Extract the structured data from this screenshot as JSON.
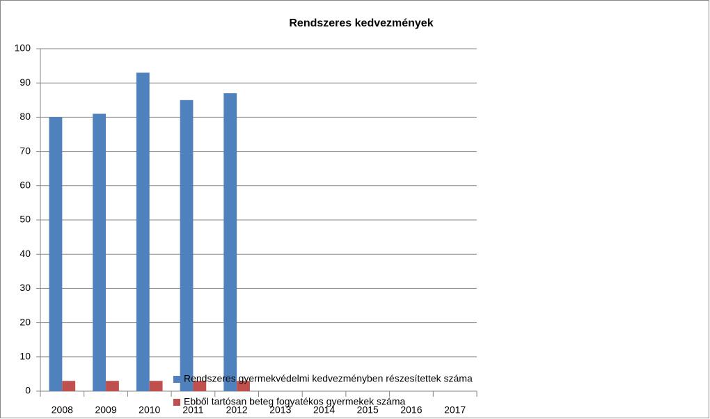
{
  "chart_data": {
    "type": "bar",
    "title": "Rendszeres kedvezmények",
    "categories": [
      "2008",
      "2009",
      "2010",
      "2011",
      "2012",
      "2013",
      "2014",
      "2015",
      "2016",
      "2017"
    ],
    "series": [
      {
        "name": "Rendszeres gyermekvédelmi kedvezményben részesítettek száma",
        "color": "#4f81bd",
        "values": [
          80,
          81,
          93,
          85,
          87,
          null,
          null,
          null,
          null,
          null
        ]
      },
      {
        "name": "Ebből tartósan beteg fogyatékos gyermekek száma",
        "color": "#c0504d",
        "values": [
          3,
          3,
          3,
          3,
          3,
          null,
          null,
          null,
          null,
          null
        ]
      }
    ],
    "ylim": [
      0,
      100
    ],
    "yticks": [
      0,
      10,
      20,
      30,
      40,
      50,
      60,
      70,
      80,
      90,
      100
    ],
    "grid": true
  }
}
